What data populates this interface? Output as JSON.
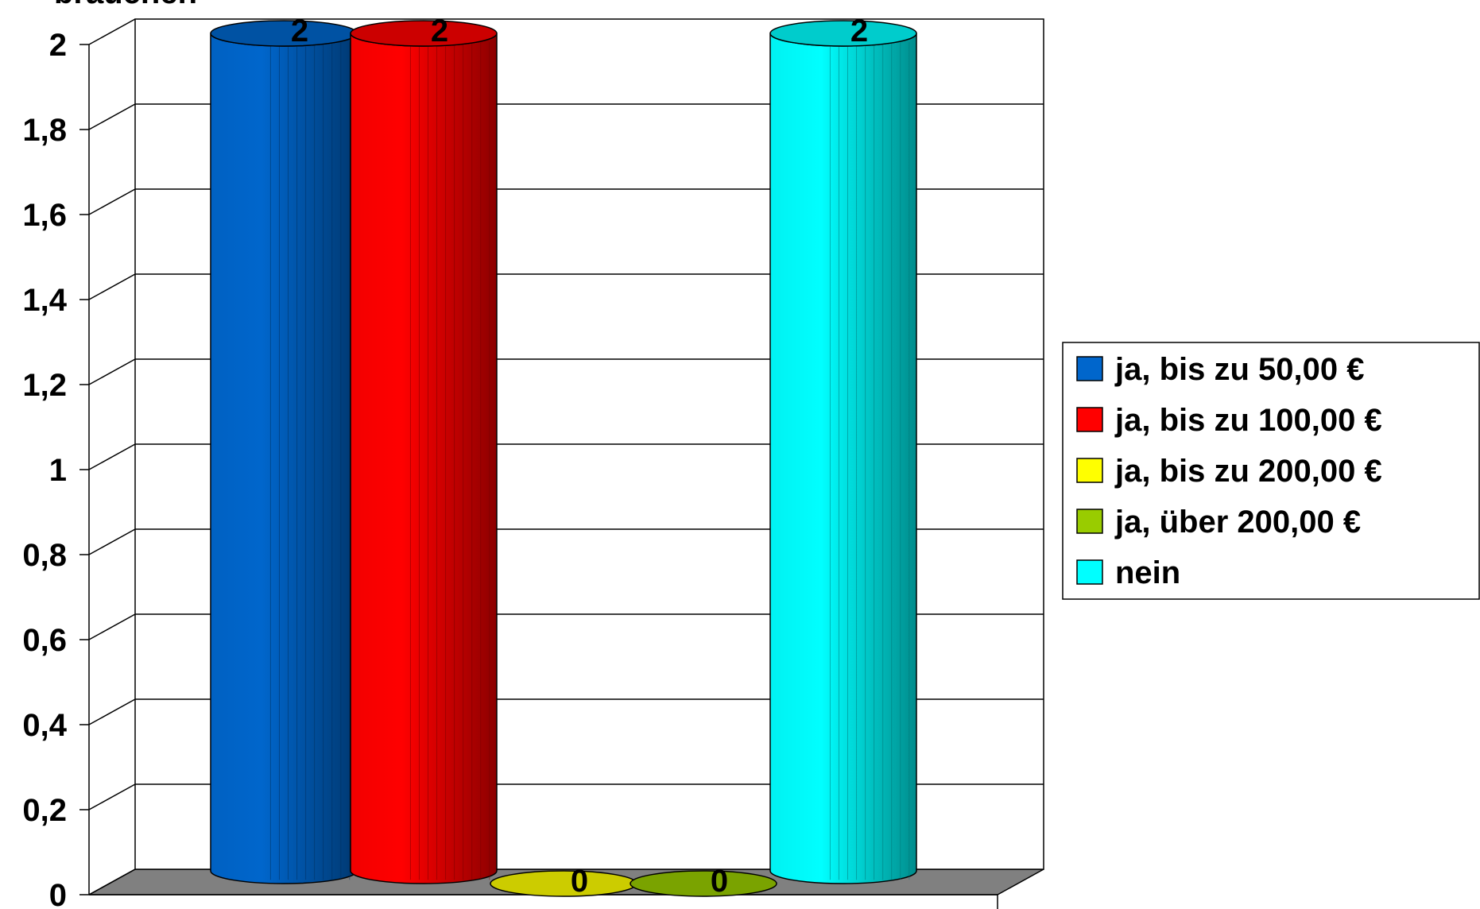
{
  "chart_data": {
    "type": "bar",
    "style": "3d-cylinder",
    "title": "brauchen",
    "categories": [
      "ja, bis zu 50,00 €",
      "ja, bis zu 100,00 €",
      "ja, bis zu 200,00 €",
      "ja, über 200,00 €",
      "nein"
    ],
    "values": [
      2,
      2,
      0,
      0,
      2
    ],
    "value_labels": [
      "2",
      "2",
      "0",
      "0",
      "2"
    ],
    "colors": [
      "#0066cc",
      "#ff0000",
      "#ffff00",
      "#99cc00",
      "#00ffff"
    ],
    "ylim": [
      0,
      2
    ],
    "yticks": [
      0,
      0.2,
      0.4,
      0.6,
      0.8,
      1,
      1.2,
      1.4,
      1.6,
      1.8,
      2
    ],
    "ytick_labels": [
      "0",
      "0,2",
      "0,4",
      "0,6",
      "0,8",
      "1",
      "1,2",
      "1,4",
      "1,6",
      "1,8",
      "2"
    ],
    "grid": true,
    "floor_color": "#808080",
    "legend": {
      "placement": "right",
      "entries": [
        "ja, bis zu 50,00 €",
        "ja, bis zu 100,00 €",
        "ja, bis zu 200,00 €",
        "ja, über 200,00 €",
        "nein"
      ]
    }
  }
}
